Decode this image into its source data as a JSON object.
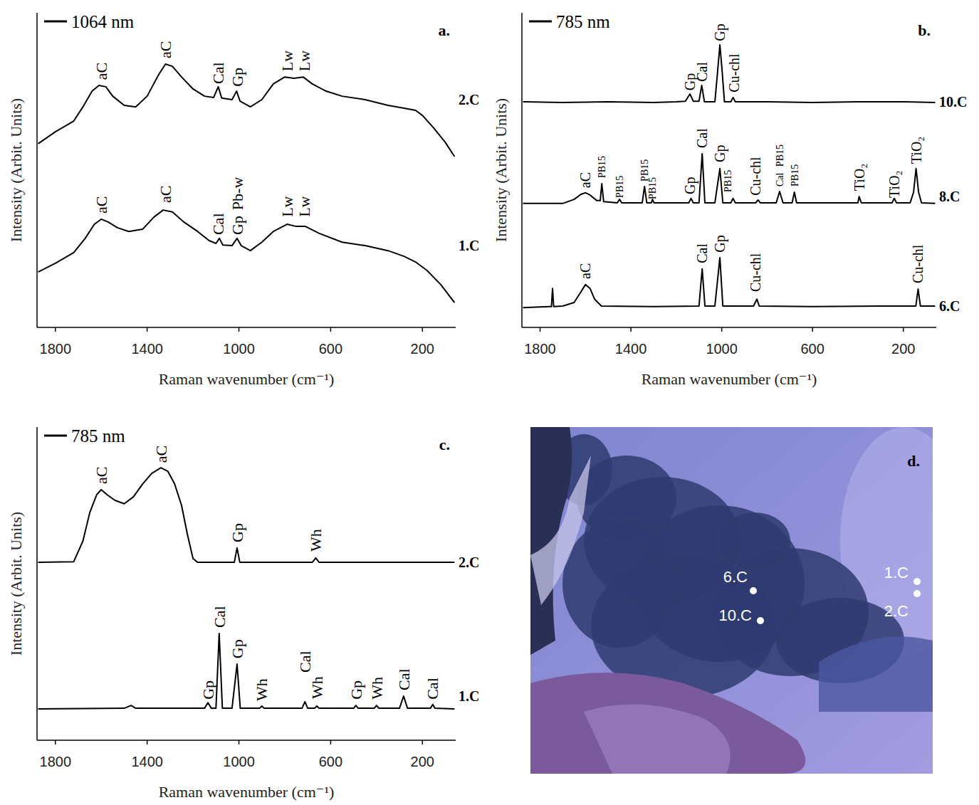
{
  "chart_data": [
    {
      "type": "line",
      "title": "1064 nm",
      "label": "a.",
      "x_label": "Raman wavenumber (cm⁻¹)",
      "y_label": "Intensity (Arbit. Units)",
      "xlim": [
        1880,
        55
      ],
      "xticks": [
        1800,
        1400,
        1000,
        600,
        200
      ],
      "ylim": [
        0,
        100
      ],
      "tick_labels": "x",
      "grid": false,
      "series": [
        {
          "name": "2.C",
          "color": "#000000",
          "x": [
            1875,
            1800,
            1720,
            1680,
            1640,
            1610,
            1580,
            1550,
            1500,
            1450,
            1400,
            1350,
            1320,
            1290,
            1250,
            1200,
            1150,
            1110,
            1090,
            1075,
            1030,
            1010,
            995,
            950,
            900,
            850,
            800,
            760,
            720,
            680,
            620,
            550,
            450,
            350,
            280,
            230,
            200,
            150,
            100,
            60
          ],
          "values": [
            58.4,
            62.2,
            65.6,
            70.1,
            75.1,
            76.9,
            76.5,
            73.5,
            70.6,
            70.1,
            73.5,
            80.3,
            83.7,
            83.0,
            79.6,
            75.8,
            73.5,
            73.1,
            76.5,
            72.9,
            72.4,
            75.1,
            71.9,
            70.1,
            72.4,
            77.4,
            79.6,
            79.2,
            79.6,
            77.4,
            75.1,
            73.5,
            72.4,
            70.6,
            69.7,
            69.0,
            67.4,
            63.3,
            58.8,
            54.3
          ],
          "annotations": [
            {
              "text": "aC",
              "x": 1600,
              "y": 78.7
            },
            {
              "text": "aC",
              "x": 1320,
              "y": 85.5
            },
            {
              "text": "Cal",
              "x": 1090,
              "y": 77.4
            },
            {
              "text": "Gp",
              "x": 1008,
              "y": 76.5
            },
            {
              "text": "Lw",
              "x": 790,
              "y": 81.4
            },
            {
              "text": "Lw",
              "x": 715,
              "y": 81.4
            }
          ]
        },
        {
          "name": "1.C",
          "color": "#000000",
          "x": [
            1875,
            1800,
            1720,
            1670,
            1630,
            1600,
            1570,
            1530,
            1480,
            1420,
            1370,
            1330,
            1290,
            1240,
            1180,
            1130,
            1100,
            1085,
            1070,
            1030,
            1008,
            990,
            950,
            900,
            850,
            790,
            750,
            710,
            650,
            550,
            450,
            350,
            280,
            230,
            180,
            120,
            60
          ],
          "values": [
            17.6,
            20.4,
            23.8,
            28.3,
            32.8,
            34.4,
            33.5,
            31.7,
            30.5,
            31.2,
            35.1,
            37.3,
            36.7,
            33.5,
            30.5,
            27.6,
            26.7,
            28.3,
            26.2,
            26.0,
            28.3,
            26.0,
            24.4,
            27.1,
            30.5,
            32.8,
            32.1,
            32.1,
            29.9,
            27.1,
            26.0,
            24.4,
            22.6,
            20.8,
            18.1,
            13.6,
            7.9
          ],
          "annotations": [
            {
              "text": "aC",
              "x": 1600,
              "y": 36.2
            },
            {
              "text": "aC",
              "x": 1320,
              "y": 39.6
            },
            {
              "text": "Cal",
              "x": 1090,
              "y": 29.4
            },
            {
              "text": "Gp",
              "x": 1008,
              "y": 29.4
            },
            {
              "text": "Pb-w",
              "x": 1008,
              "y": 37.3
            },
            {
              "text": "Lw",
              "x": 790,
              "y": 35.1
            },
            {
              "text": "Lw",
              "x": 715,
              "y": 35.1
            }
          ]
        }
      ]
    },
    {
      "type": "line",
      "title": "785 nm",
      "label": "b.",
      "x_label": "Raman wavenumber (cm⁻¹)",
      "y_label": "Intensity (Arbit. Units)",
      "xlim": [
        1880,
        55
      ],
      "xticks": [
        1800,
        1400,
        1000,
        600,
        200
      ],
      "ylim": [
        0,
        100
      ],
      "tick_labels": "x",
      "grid": false,
      "series": [
        {
          "name": "10.C",
          "color": "#000000",
          "x": [
            1875,
            1700,
            1500,
            1300,
            1200,
            1160,
            1140,
            1125,
            1100,
            1088,
            1076,
            1030,
            1018,
            1008,
            998,
            988,
            960,
            950,
            940,
            800,
            600,
            400,
            200,
            60
          ],
          "values": [
            71.7,
            71.5,
            71.7,
            71.5,
            71.7,
            71.9,
            74.2,
            71.9,
            71.9,
            76.9,
            71.7,
            71.7,
            81.4,
            89.8,
            81.4,
            71.7,
            71.7,
            73.1,
            71.7,
            71.7,
            71.5,
            71.7,
            71.7,
            71.5
          ],
          "annotations": [
            {
              "text": "Gp",
              "x": 1140,
              "y": 75.3
            },
            {
              "text": "Cal",
              "x": 1088,
              "y": 78.1
            },
            {
              "text": "Gp",
              "x": 1008,
              "y": 91.0
            },
            {
              "text": "Cu-chl",
              "x": 945,
              "y": 74.7
            }
          ]
        },
        {
          "name": "8.C",
          "color": "#000000",
          "x": [
            1875,
            1700,
            1650,
            1620,
            1600,
            1580,
            1550,
            1535,
            1528,
            1520,
            1460,
            1450,
            1440,
            1350,
            1340,
            1330,
            1310,
            1305,
            1298,
            1200,
            1145,
            1135,
            1125,
            1100,
            1086,
            1074,
            1030,
            1008,
            995,
            960,
            950,
            940,
            850,
            840,
            830,
            760,
            745,
            730,
            690,
            680,
            670,
            500,
            400,
            395,
            385,
            250,
            240,
            230,
            170,
            155,
            144,
            133,
            120,
            60
          ],
          "values": [
            39.4,
            39.4,
            40.7,
            42.3,
            42.8,
            42.1,
            40.3,
            40.3,
            45.7,
            40.0,
            39.6,
            40.7,
            39.6,
            39.6,
            44.8,
            39.6,
            39.6,
            40.7,
            39.6,
            39.6,
            39.6,
            41.0,
            39.6,
            39.6,
            55.2,
            39.6,
            39.6,
            50.5,
            39.6,
            39.6,
            41.0,
            39.6,
            39.6,
            40.5,
            39.6,
            39.6,
            43.2,
            39.6,
            39.6,
            43.0,
            39.6,
            39.6,
            39.6,
            41.6,
            39.6,
            39.6,
            41.0,
            39.6,
            39.6,
            43.0,
            50.5,
            43.0,
            39.6,
            39.4
          ],
          "annotations": [
            {
              "text": "aC",
              "x": 1600,
              "y": 44.3
            },
            {
              "text": "PB15",
              "x": 1528,
              "y": 47.5
            },
            {
              "text": "PB15",
              "x": 1450,
              "y": 41.2
            },
            {
              "text": "PB15",
              "x": 1340,
              "y": 46.4
            },
            {
              "text": "PB15",
              "x": 1305,
              "y": 40.7
            },
            {
              "text": "Gp",
              "x": 1140,
              "y": 42.3
            },
            {
              "text": "Cal",
              "x": 1088,
              "y": 57.0
            },
            {
              "text": "Gp",
              "x": 1008,
              "y": 52.5
            },
            {
              "text": "PB15",
              "x": 975,
              "y": 43.0
            },
            {
              "text": "Cu-chl",
              "x": 850,
              "y": 41.9
            },
            {
              "text": "Cal",
              "x": 745,
              "y": 44.8
            },
            {
              "text": "PB15",
              "x": 745,
              "y": 51.1
            },
            {
              "text": "PB15",
              "x": 680,
              "y": 44.8
            },
            {
              "text": "TiO₂",
              "x": 395,
              "y": 43.4
            },
            {
              "text": "TiO₂",
              "x": 240,
              "y": 41.2
            },
            {
              "text": "TiO₂",
              "x": 144,
              "y": 52.0
            }
          ]
        },
        {
          "name": "6.C",
          "color": "#000000",
          "x": [
            1875,
            1760,
            1750,
            1745,
            1740,
            1700,
            1650,
            1620,
            1600,
            1580,
            1560,
            1530,
            1300,
            1100,
            1086,
            1074,
            1030,
            1008,
            995,
            860,
            845,
            835,
            600,
            300,
            145,
            135,
            125,
            60
          ],
          "values": [
            6.3,
            6.6,
            6.6,
            12.4,
            6.6,
            6.8,
            7.9,
            11.3,
            13.6,
            12.4,
            9.0,
            6.8,
            6.6,
            6.8,
            18.6,
            6.8,
            6.8,
            22.2,
            6.8,
            6.8,
            9.0,
            6.8,
            6.6,
            6.8,
            6.8,
            12.2,
            6.8,
            6.8
          ],
          "annotations": [
            {
              "text": "aC",
              "x": 1600,
              "y": 15.4
            },
            {
              "text": "Cal",
              "x": 1088,
              "y": 20.4
            },
            {
              "text": "Gp",
              "x": 1008,
              "y": 23.8
            },
            {
              "text": "Cu-chl",
              "x": 850,
              "y": 11.3
            },
            {
              "text": "Cu-chl",
              "x": 135,
              "y": 14.0
            }
          ]
        }
      ]
    },
    {
      "type": "line",
      "title": "785 nm",
      "label": "c.",
      "x_label": "Raman wavenumber (cm⁻¹)",
      "y_label": "Intensity (Arbit. Units)",
      "xlim": [
        1880,
        55
      ],
      "xticks": [
        1800,
        1400,
        1000,
        600,
        200
      ],
      "ylim": [
        0,
        100
      ],
      "tick_labels": "x",
      "grid": false,
      "series": [
        {
          "name": "2.C",
          "color": "#000000",
          "x": [
            1875,
            1720,
            1680,
            1650,
            1620,
            1600,
            1575,
            1540,
            1500,
            1460,
            1420,
            1380,
            1340,
            1310,
            1280,
            1250,
            1225,
            1200,
            1180,
            1100,
            1020,
            1008,
            996,
            680,
            665,
            650,
            400,
            200,
            60
          ],
          "values": [
            56.8,
            57.0,
            63.6,
            72.7,
            78.4,
            80.0,
            78.4,
            76.6,
            75.5,
            77.7,
            81.8,
            85.2,
            87.0,
            85.9,
            81.8,
            75.0,
            65.9,
            58.0,
            56.8,
            56.8,
            56.8,
            61.4,
            56.8,
            56.8,
            58.2,
            56.8,
            56.8,
            56.8,
            56.8
          ],
          "annotations": [
            {
              "text": "aC",
              "x": 1600,
              "y": 81.8
            },
            {
              "text": "aC",
              "x": 1340,
              "y": 88.6
            },
            {
              "text": "Gp",
              "x": 1008,
              "y": 63.2
            },
            {
              "text": "Wh",
              "x": 665,
              "y": 60.2
            }
          ]
        },
        {
          "name": "1.C",
          "color": "#000000",
          "x": [
            1875,
            1500,
            1470,
            1450,
            1150,
            1135,
            1120,
            1100,
            1086,
            1072,
            1030,
            1008,
            994,
            910,
            900,
            890,
            725,
            712,
            700,
            670,
            660,
            650,
            500,
            490,
            480,
            410,
            400,
            390,
            300,
            282,
            265,
            165,
            155,
            145,
            60
          ],
          "values": [
            10.0,
            10.2,
            11.1,
            10.2,
            10.2,
            12.0,
            10.2,
            10.2,
            34.1,
            10.2,
            10.2,
            24.3,
            10.2,
            10.2,
            10.9,
            10.2,
            10.2,
            12.3,
            10.2,
            10.2,
            10.9,
            10.2,
            10.2,
            11.1,
            10.2,
            10.2,
            11.1,
            10.2,
            10.2,
            14.1,
            10.2,
            10.2,
            11.4,
            10.2,
            10.0
          ],
          "annotations": [
            {
              "text": "Gp",
              "x": 1135,
              "y": 13.0
            },
            {
              "text": "Cal",
              "x": 1086,
              "y": 35.9
            },
            {
              "text": "Gp",
              "x": 1008,
              "y": 26.1
            },
            {
              "text": "Wh",
              "x": 900,
              "y": 12.5
            },
            {
              "text": "Cal",
              "x": 712,
              "y": 21.6
            },
            {
              "text": "Wh",
              "x": 660,
              "y": 13.2
            },
            {
              "text": "Gp",
              "x": 490,
              "y": 13.0
            },
            {
              "text": "Wh",
              "x": 400,
              "y": 13.0
            },
            {
              "text": "Cal",
              "x": 282,
              "y": 15.9
            },
            {
              "text": "Cal",
              "x": 155,
              "y": 13.0
            }
          ]
        }
      ]
    }
  ],
  "photo": {
    "label": "d.",
    "points": [
      "6.C",
      "10.C",
      "1.C",
      "2.C"
    ]
  }
}
